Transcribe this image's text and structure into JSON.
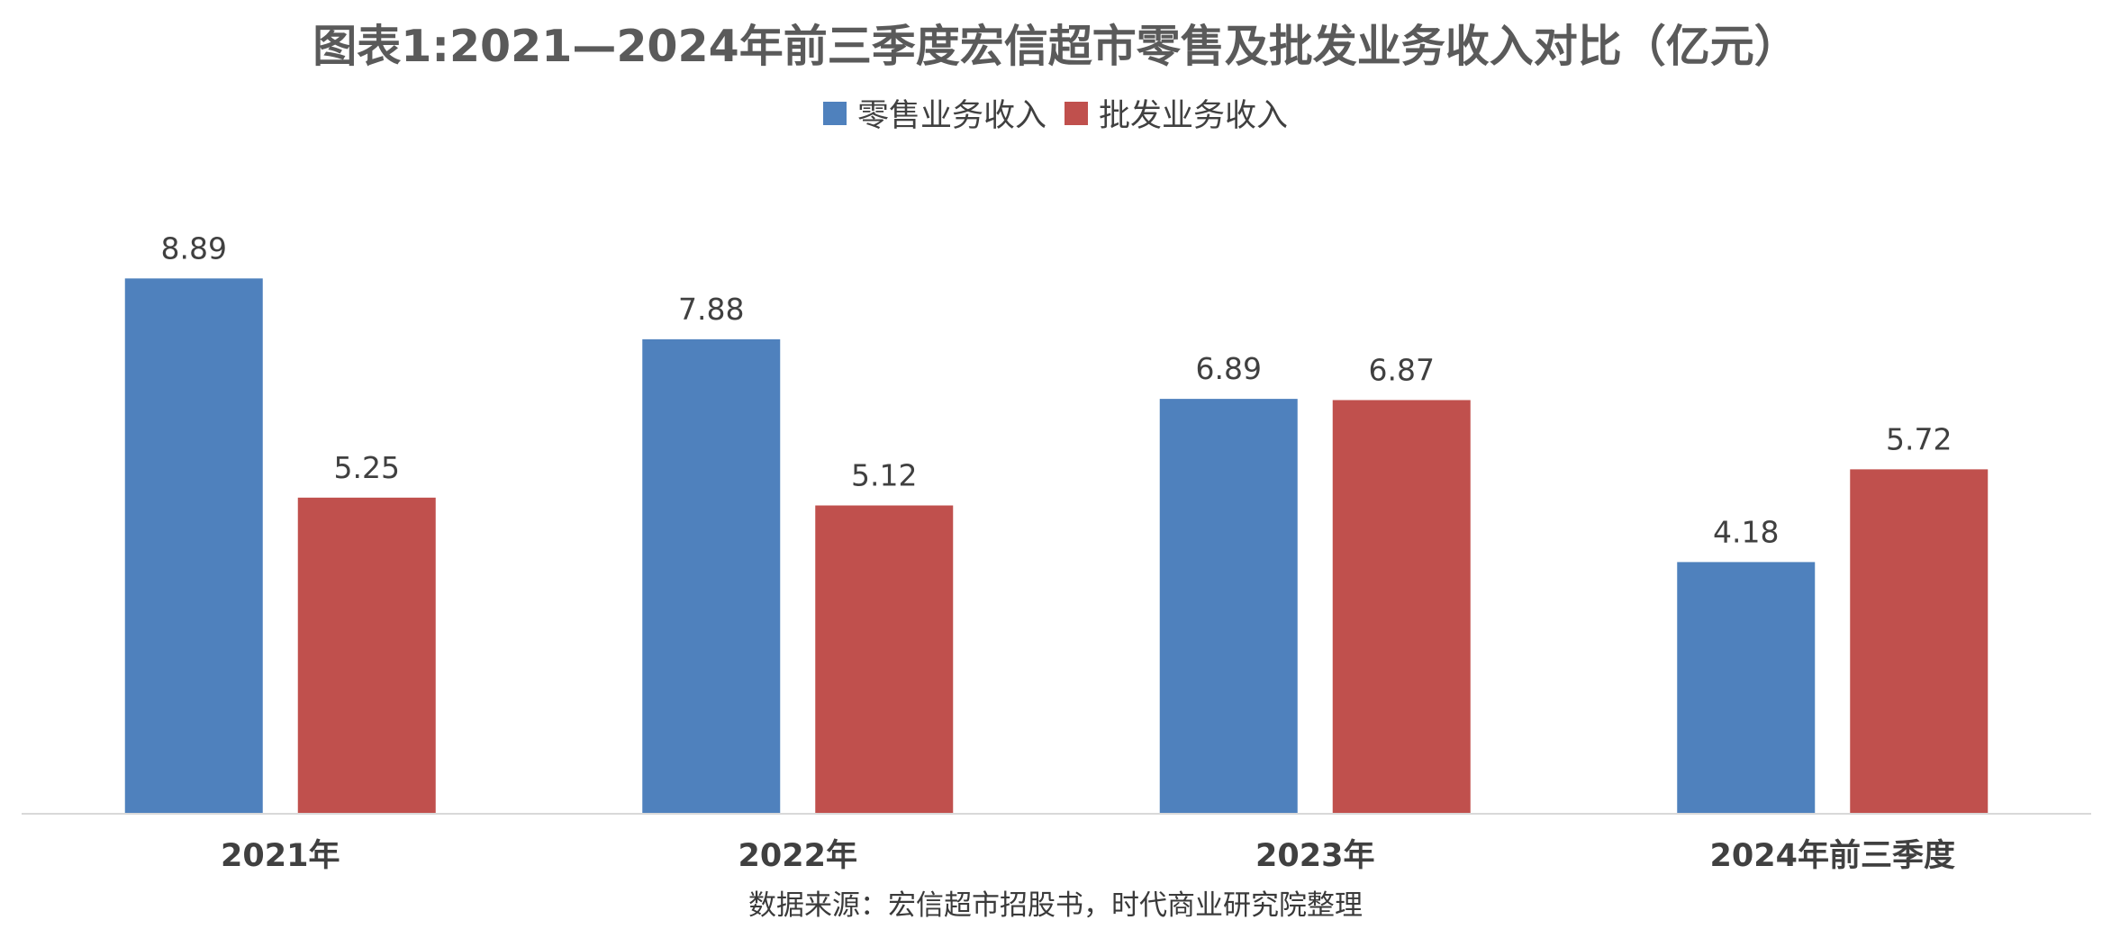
{
  "chart_data": {
    "type": "bar",
    "title": "图表1:2021—2024年前三季度宏信超市零售及批发业务收入对比（亿元）",
    "categories": [
      "2021年",
      "2022年",
      "2023年",
      "2024年前三季度"
    ],
    "series": [
      {
        "name": "零售业务收入",
        "color": "#4f81bd",
        "values": [
          8.89,
          7.88,
          6.89,
          4.18
        ]
      },
      {
        "name": "批发业务收入",
        "color": "#c0504d",
        "values": [
          5.25,
          5.12,
          6.87,
          5.72
        ]
      }
    ],
    "ylim": [
      0,
      10.3
    ],
    "grid": false,
    "legend_position": "top-center",
    "data_labels": true,
    "source": "数据来源：宏信超市招股书，时代商业研究院整理"
  }
}
